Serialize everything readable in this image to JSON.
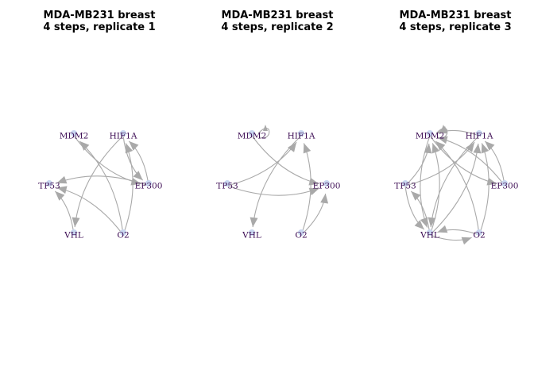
{
  "colors": {
    "edge": "#a9a9a9",
    "label": "#3b0a52",
    "node": "#c9d7f0"
  },
  "panels": [
    {
      "title_line1": "MDA-MB231 breast",
      "title_line2": "4 steps, replicate 1",
      "nodes": [
        "MDM2",
        "HIF1A",
        "TP53",
        "EP300",
        "VHL",
        "O2"
      ],
      "edges": [
        [
          "MDM2",
          "EP300"
        ],
        [
          "HIF1A",
          "EP300"
        ],
        [
          "EP300",
          "HIF1A"
        ],
        [
          "EP300",
          "TP53"
        ],
        [
          "O2",
          "TP53"
        ],
        [
          "O2",
          "HIF1A"
        ],
        [
          "HIF1A",
          "VHL"
        ],
        [
          "VHL",
          "TP53"
        ],
        [
          "O2",
          "MDM2"
        ]
      ]
    },
    {
      "title_line1": "MDA-MB231 breast",
      "title_line2": "4 steps, replicate 2",
      "nodes": [
        "MDM2",
        "HIF1A",
        "TP53",
        "EP300",
        "VHL",
        "O2"
      ],
      "edges": [
        [
          "MDM2",
          "MDM2"
        ],
        [
          "TP53",
          "HIF1A"
        ],
        [
          "MDM2",
          "EP300"
        ],
        [
          "TP53",
          "EP300"
        ],
        [
          "HIF1A",
          "VHL"
        ],
        [
          "O2",
          "HIF1A"
        ],
        [
          "O2",
          "EP300"
        ]
      ]
    },
    {
      "title_line1": "MDA-MB231 breast",
      "title_line2": "4 steps, replicate 3",
      "nodes": [
        "MDM2",
        "HIF1A",
        "TP53",
        "EP300",
        "VHL",
        "O2"
      ],
      "edges": [
        [
          "MDM2",
          "MDM2"
        ],
        [
          "TP53",
          "HIF1A"
        ],
        [
          "HIF1A",
          "MDM2"
        ],
        [
          "EP300",
          "HIF1A"
        ],
        [
          "EP300",
          "MDM2"
        ],
        [
          "TP53",
          "MDM2"
        ],
        [
          "VHL",
          "MDM2"
        ],
        [
          "MDM2",
          "VHL"
        ],
        [
          "TP53",
          "VHL"
        ],
        [
          "VHL",
          "HIF1A"
        ],
        [
          "HIF1A",
          "VHL"
        ],
        [
          "O2",
          "VHL"
        ],
        [
          "VHL",
          "O2"
        ],
        [
          "O2",
          "MDM2"
        ],
        [
          "O2",
          "HIF1A"
        ],
        [
          "MDM2",
          "EP300"
        ],
        [
          "VHL",
          "TP53"
        ]
      ]
    }
  ]
}
